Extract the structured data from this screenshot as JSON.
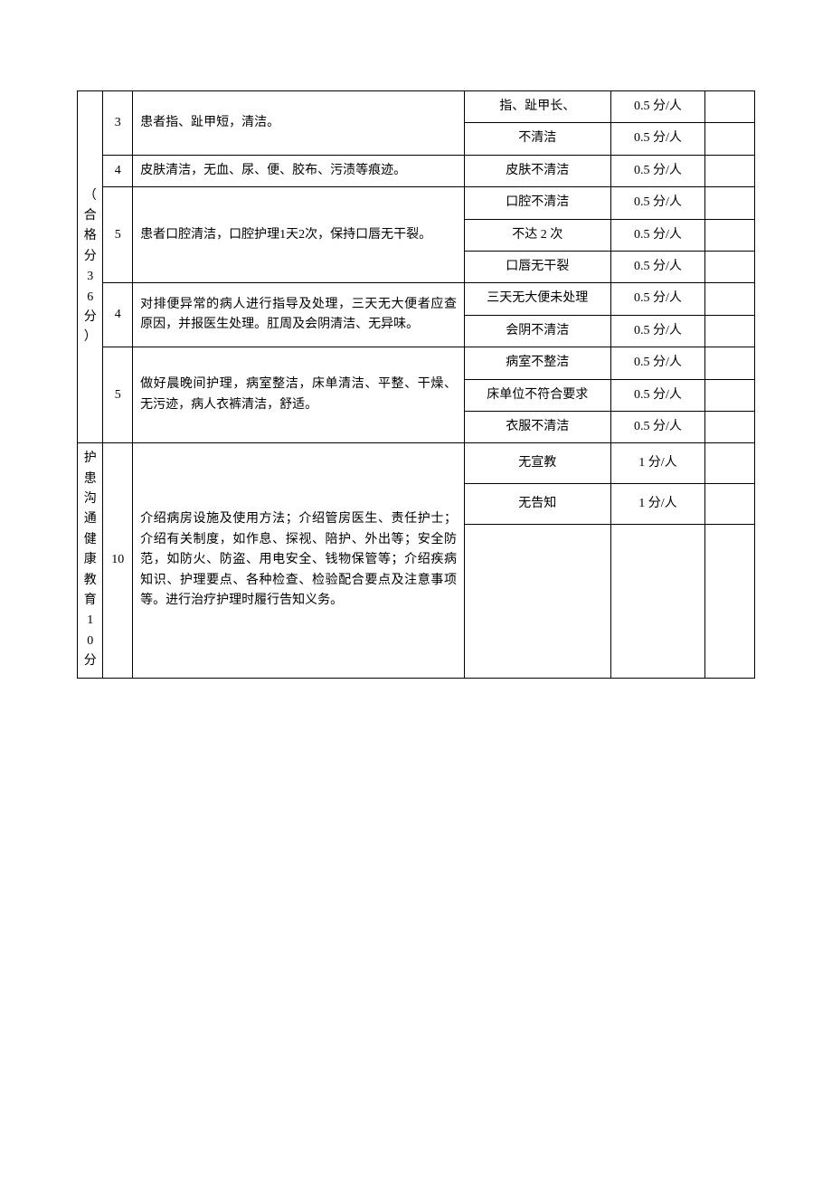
{
  "sections": [
    {
      "category_label": "（合格分36分）",
      "rows": [
        {
          "score": "3",
          "desc": "患者指、趾甲短，清洁。",
          "problems": [
            {
              "text": "指、趾甲长、",
              "deduct": "0.5 分/人"
            },
            {
              "text": "不清洁",
              "deduct": "0.5 分/人"
            }
          ]
        },
        {
          "score": "4",
          "desc": "皮肤清洁，无血、尿、便、胶布、污渍等痕迹。",
          "problems": [
            {
              "text": "皮肤不清洁",
              "deduct": "0.5 分/人"
            }
          ]
        },
        {
          "score": "5",
          "desc": "患者口腔清洁，口腔护理1天2次，保持口唇无干裂。",
          "problems": [
            {
              "text": "口腔不清洁",
              "deduct": "0.5 分/人"
            },
            {
              "text": "不达 2 次",
              "deduct": "0.5 分/人"
            },
            {
              "text": "口唇无干裂",
              "deduct": "0.5 分/人"
            }
          ]
        },
        {
          "score": "4",
          "desc": "对排便异常的病人进行指导及处理，三天无大便者应查原因，并报医生处理。肛周及会阴清洁、无异味。",
          "problems": [
            {
              "text": "三天无大便未处理",
              "deduct": "0.5 分/人"
            },
            {
              "text": "会阴不清洁",
              "deduct": "0.5 分/人"
            }
          ]
        },
        {
          "score": "5",
          "desc": "做好晨晚间护理，病室整洁，床单清洁、平整、干燥、无污迹，病人衣裤清洁，舒适。",
          "problems": [
            {
              "text": "病室不整洁",
              "deduct": "0.5 分/人"
            },
            {
              "text": "床单位不符合要求",
              "deduct": "0.5 分/人"
            },
            {
              "text": "衣服不清洁",
              "deduct": "0.5 分/人"
            }
          ]
        }
      ]
    },
    {
      "category_label": "护患沟通健康教育10分",
      "rows": [
        {
          "score": "10",
          "desc": "介绍病房设施及使用方法；介绍管房医生、责任护士；介绍有关制度，如作息、探视、陪护、外出等；安全防范，如防火、防盗、用电安全、钱物保管等；介绍疾病知识、护理要点、各种检查、检验配合要点及注意事项等。进行治疗护理时履行告知义务。",
          "problems": [
            {
              "text": "无宣教",
              "deduct": "1 分/人"
            },
            {
              "text": "无告知",
              "deduct": "1 分/人"
            },
            {
              "text": "",
              "deduct": "",
              "tall": true
            }
          ]
        }
      ]
    }
  ]
}
